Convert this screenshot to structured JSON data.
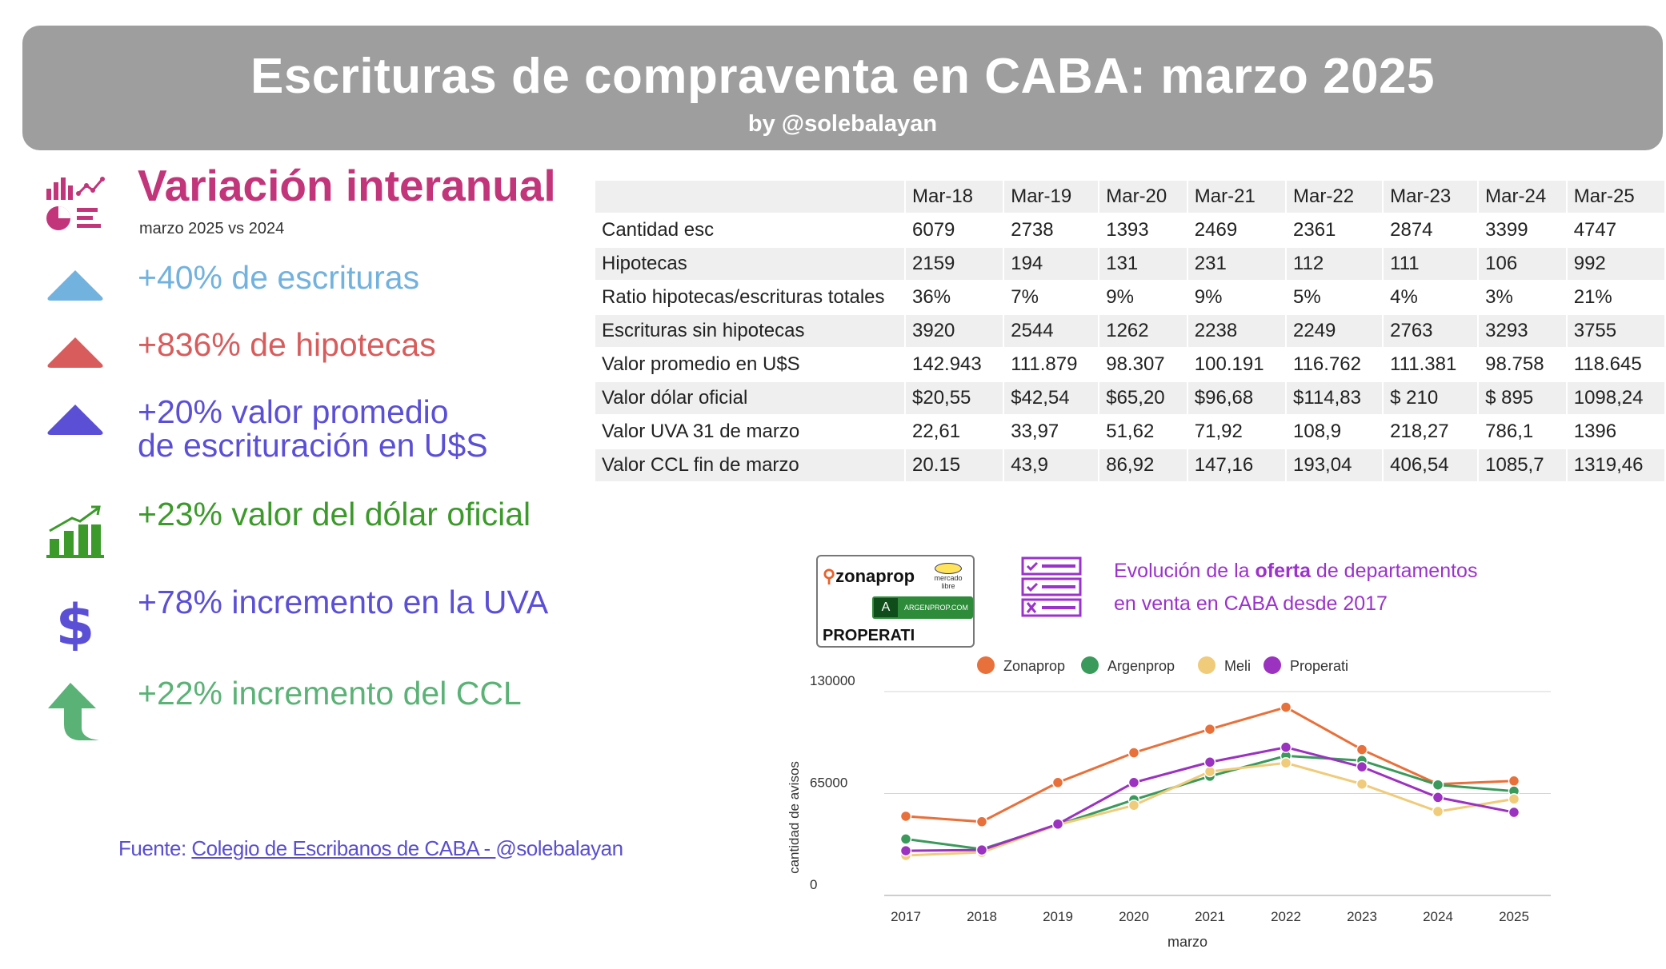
{
  "header": {
    "title": "Escrituras de compraventa en CABA:  marzo 2025",
    "subtitle": "by @solebalayan"
  },
  "left": {
    "title": "Variación  interanual",
    "subtitle": "marzo 2025 vs 2024",
    "stats": [
      {
        "text": "+40% de escrituras",
        "color": "#72b2de",
        "icon": "triangle-up-icon"
      },
      {
        "text": "+836% de hipotecas",
        "color": "#d95c5c",
        "icon": "triangle-up-icon"
      },
      {
        "text": "+20% valor promedio",
        "text2": "de escrituración en U$S",
        "color": "#5b4fd6",
        "icon": "triangle-up-icon"
      },
      {
        "text": "+23% valor del dólar oficial",
        "color": "#3c9a2b",
        "icon": "growth-chart-icon"
      },
      {
        "text": "+78% incremento en la UVA",
        "color": "#5b4fd6",
        "icon": "dollar-icon"
      },
      {
        "text": "+22% incremento del CCL",
        "color": "#5bb276",
        "icon": "curved-up-arrow-icon"
      }
    ],
    "source_prefix": "Fuente: ",
    "source_link": "Colegio de  Escribanos de CABA  - ",
    "source_suffix": " @solebalayan"
  },
  "table": {
    "columns": [
      "Mar-18",
      "Mar-19",
      "Mar-20",
      "Mar-21",
      "Mar-22",
      "Mar-23",
      "Mar-24",
      "Mar-25"
    ],
    "rows": [
      {
        "label": "Cantidad esc",
        "values": [
          "6079",
          "2738",
          "1393",
          "2469",
          "2361",
          "2874",
          "3399",
          "4747"
        ]
      },
      {
        "label": "Hipotecas",
        "values": [
          "2159",
          "194",
          "131",
          "231",
          "112",
          "111",
          "106",
          "992"
        ]
      },
      {
        "label": "Ratio hipotecas/escrituras totales",
        "values": [
          "36%",
          "7%",
          "9%",
          "9%",
          "5%",
          "4%",
          "3%",
          "21%"
        ]
      },
      {
        "label": "Escrituras sin hipotecas",
        "values": [
          "3920",
          "2544",
          "1262",
          "2238",
          "2249",
          "2763",
          "3293",
          "3755"
        ]
      },
      {
        "label": "Valor promedio en U$S",
        "values": [
          "142.943",
          "111.879",
          "98.307",
          "100.191",
          "116.762",
          "111.381",
          "98.758",
          "118.645"
        ]
      },
      {
        "label": "Valor dólar oficial",
        "values": [
          "$20,55",
          "$42,54",
          "$65,20",
          "$96,68",
          "$114,83",
          "$ 210",
          "$ 895",
          "1098,24"
        ]
      },
      {
        "label": "Valor UVA 31 de marzo",
        "values": [
          "22,61",
          "33,97",
          "51,62",
          "71,92",
          "108,9",
          "218,27",
          "786,1",
          "1396"
        ]
      },
      {
        "label": "Valor CCL fin de marzo",
        "values": [
          "20.15",
          "43,9",
          "86,92",
          "147,16",
          "193,04",
          "406,54",
          "1085,7",
          "1319,46"
        ]
      }
    ]
  },
  "logos": {
    "zonaprop": "zonaprop",
    "mercadolibre_1": "mercado",
    "mercadolibre_2": "libre",
    "argenprop": "ARGENPROP.COM",
    "properati": "PROPERATI"
  },
  "evolution": {
    "line1_pre": "Evolución de la ",
    "line1_bold": "oferta",
    "line1_post": " de departamentos",
    "line2": "en venta en CABA desde 2017"
  },
  "chart_data": {
    "type": "line",
    "x": [
      "2017",
      "2018",
      "2019",
      "2020",
      "2021",
      "2022",
      "2023",
      "2024",
      "2025"
    ],
    "xlabel": "marzo",
    "ylabel": "cantidad de avisos",
    "ylim": [
      0,
      130000
    ],
    "yticks": [
      "0",
      "65000",
      "130000"
    ],
    "grid": true,
    "legend": "top",
    "series": [
      {
        "name": "Zonaprop",
        "color": "#e8703a",
        "values": [
          50500,
          47000,
          72000,
          91000,
          106000,
          120000,
          93000,
          71000,
          73000
        ]
      },
      {
        "name": "Argenprop",
        "color": "#3a9a5b",
        "values": [
          36000,
          29500,
          45000,
          61000,
          76000,
          89000,
          86000,
          70500,
          66500
        ]
      },
      {
        "name": "Meli",
        "color": "#efcb7a",
        "values": [
          25500,
          27500,
          45000,
          57500,
          79000,
          84500,
          71000,
          53500,
          61500
        ]
      },
      {
        "name": "Properati",
        "color": "#9b32c0",
        "values": [
          28500,
          29000,
          45500,
          72000,
          85000,
          94500,
          82000,
          62500,
          53000
        ]
      }
    ]
  }
}
